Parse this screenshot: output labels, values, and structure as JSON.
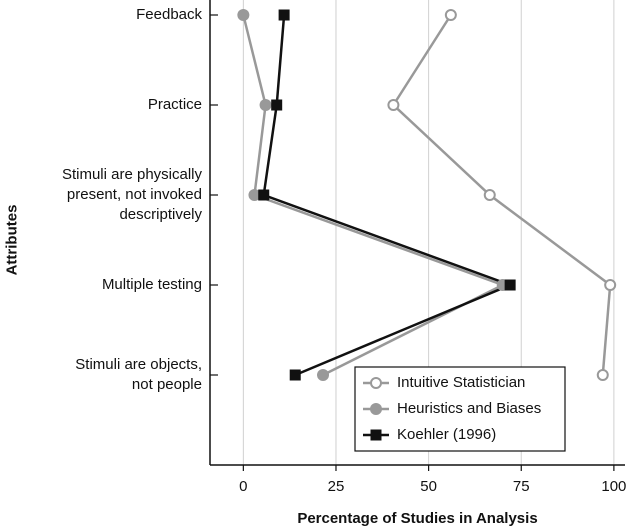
{
  "chart_data": {
    "type": "line",
    "orientation": "horizontal",
    "xlabel": "Percentage of Studies in Analysis",
    "ylabel": "Attributes",
    "categories": [
      "Feedback",
      "Practice",
      "Stimuli are physically\npresent, not invoked\ndescriptively",
      "Multiple testing",
      "Stimuli are objects,\nnot people"
    ],
    "series": [
      {
        "name": "Intuitive Statistician",
        "color": "#999999",
        "marker": "open-circle",
        "values": [
          56,
          40.5,
          66.5,
          99,
          97
        ]
      },
      {
        "name": "Heuristics and Biases",
        "color": "#999999",
        "marker": "filled-circle",
        "values": [
          0,
          6,
          3,
          70,
          21.5
        ]
      },
      {
        "name": "Koehler (1996)",
        "color": "#111111",
        "marker": "square",
        "values": [
          11,
          9,
          5.5,
          72,
          14
        ]
      }
    ],
    "xlim": [
      -9,
      103
    ],
    "xticks": [
      0,
      25,
      50,
      75,
      100
    ],
    "grid": true,
    "legend": "lower right"
  }
}
